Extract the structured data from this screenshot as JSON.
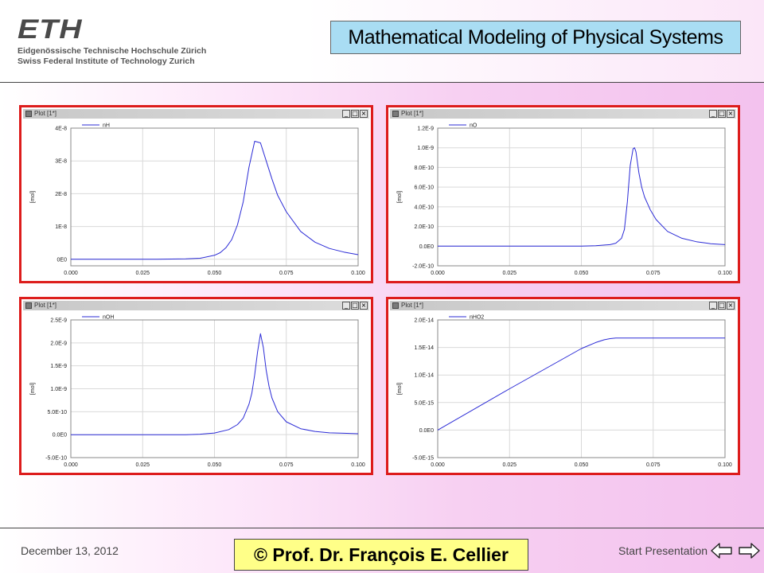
{
  "header": {
    "logo": {
      "wordmark": "ETH",
      "line1": "Eidgenössische Technische Hochschule Zürich",
      "line2": "Swiss Federal Institute of Technology Zurich"
    },
    "title": "Mathematical Modeling of Physical Systems"
  },
  "plots": [
    {
      "window_title": "Plot [1*]",
      "legend": "nH",
      "ylabel": "[mol]"
    },
    {
      "window_title": "Plot [1*]",
      "legend": "nO",
      "ylabel": "[mol]"
    },
    {
      "window_title": "Plot [1*]",
      "legend": "nOH",
      "ylabel": "[mol]"
    },
    {
      "window_title": "Plot [1*]",
      "legend": "nHO2",
      "ylabel": "[mol]"
    }
  ],
  "window_buttons": {
    "minimize": "_",
    "maximize": "□",
    "close": "×"
  },
  "footer": {
    "date": "December 13, 2012",
    "link": "Start Presentation",
    "copyright": "© Prof. Dr. François E. Cellier"
  },
  "chart_data": [
    {
      "type": "line",
      "title": "",
      "xlabel": "",
      "ylabel": "[mol]",
      "xlim": [
        0,
        0.1
      ],
      "ylim": [
        -2e-09,
        4e-08
      ],
      "xticks": [
        0,
        0.025,
        0.05,
        0.075,
        0.1
      ],
      "xtick_labels": [
        "0.000",
        "0.025",
        "0.050",
        "0.075",
        "0.100"
      ],
      "yticks": [
        0,
        1e-08,
        2e-08,
        3e-08,
        4e-08
      ],
      "ytick_labels": [
        "0E0",
        "1E-8",
        "2E-8",
        "3E-8",
        "4E-8"
      ],
      "grid": true,
      "legend_position": "top-left",
      "color": "#2b2bd6",
      "series": [
        {
          "name": "nH",
          "x": [
            0,
            0.01,
            0.02,
            0.03,
            0.04,
            0.045,
            0.05,
            0.052,
            0.054,
            0.056,
            0.058,
            0.06,
            0.062,
            0.064,
            0.066,
            0.068,
            0.07,
            0.072,
            0.075,
            0.08,
            0.085,
            0.09,
            0.095,
            0.1
          ],
          "y": [
            0,
            0,
            0,
            0,
            1e-10,
            3e-10,
            1.2e-09,
            2e-09,
            3.5e-09,
            6e-09,
            1.05e-08,
            1.75e-08,
            2.8e-08,
            3.6e-08,
            3.55e-08,
            3e-08,
            2.45e-08,
            1.95e-08,
            1.45e-08,
            8.5e-09,
            5.2e-09,
            3.3e-09,
            2.2e-09,
            1.4e-09
          ]
        }
      ]
    },
    {
      "type": "line",
      "title": "",
      "xlabel": "",
      "ylabel": "[mol]",
      "xlim": [
        0,
        0.1
      ],
      "ylim": [
        -2e-10,
        1.2e-09
      ],
      "xticks": [
        0,
        0.025,
        0.05,
        0.075,
        0.1
      ],
      "xtick_labels": [
        "0.000",
        "0.025",
        "0.050",
        "0.075",
        "0.100"
      ],
      "yticks": [
        -2e-10,
        0,
        2e-10,
        4e-10,
        6e-10,
        8e-10,
        1e-09,
        1.2e-09
      ],
      "ytick_labels": [
        "-2.0E-10",
        "0.0E0",
        "2.0E-10",
        "4.0E-10",
        "6.0E-10",
        "8.0E-10",
        "1.0E-9",
        "1.2E-9"
      ],
      "grid": true,
      "legend_position": "top-left",
      "color": "#2b2bd6",
      "series": [
        {
          "name": "nO",
          "x": [
            0,
            0.02,
            0.04,
            0.05,
            0.055,
            0.06,
            0.062,
            0.064,
            0.065,
            0.066,
            0.067,
            0.068,
            0.0685,
            0.069,
            0.07,
            0.071,
            0.072,
            0.074,
            0.076,
            0.08,
            0.085,
            0.09,
            0.095,
            0.1
          ],
          "y": [
            0,
            0,
            0,
            1e-12,
            4e-12,
            1.5e-11,
            3e-11,
            8e-11,
            1.7e-10,
            4.5e-10,
            8.2e-10,
            9.9e-10,
            1e-09,
            9.6e-10,
            7.5e-10,
            6e-10,
            5e-10,
            3.7e-10,
            2.7e-10,
            1.5e-10,
            8e-11,
            4.5e-11,
            2.5e-11,
            1.5e-11
          ]
        }
      ]
    },
    {
      "type": "line",
      "title": "",
      "xlabel": "",
      "ylabel": "[mol]",
      "xlim": [
        0,
        0.1
      ],
      "ylim": [
        -5e-10,
        2.5e-09
      ],
      "xticks": [
        0,
        0.025,
        0.05,
        0.075,
        0.1
      ],
      "xtick_labels": [
        "0.000",
        "0.025",
        "0.050",
        "0.075",
        "0.100"
      ],
      "yticks": [
        -5e-10,
        0,
        5e-10,
        1e-09,
        1.5e-09,
        2e-09,
        2.5e-09
      ],
      "ytick_labels": [
        "-5.0E-10",
        "0.0E0",
        "5.0E-10",
        "1.0E-9",
        "1.5E-9",
        "2.0E-9",
        "2.5E-9"
      ],
      "grid": true,
      "legend_position": "top-left",
      "color": "#2b2bd6",
      "series": [
        {
          "name": "nOH",
          "x": [
            0,
            0.02,
            0.04,
            0.045,
            0.05,
            0.055,
            0.058,
            0.06,
            0.062,
            0.063,
            0.064,
            0.065,
            0.066,
            0.067,
            0.068,
            0.069,
            0.07,
            0.072,
            0.075,
            0.08,
            0.085,
            0.09,
            0.095,
            0.1
          ],
          "y": [
            0,
            0,
            0,
            1e-11,
            3.5e-11,
            1.1e-10,
            2.2e-10,
            3.6e-10,
            6.6e-10,
            9e-10,
            1.3e-09,
            1.8e-09,
            2.2e-09,
            1.9e-09,
            1.4e-09,
            1.05e-09,
            8e-10,
            5e-10,
            2.8e-10,
            1.3e-10,
            7e-11,
            4e-11,
            3e-11,
            2e-11
          ]
        }
      ]
    },
    {
      "type": "line",
      "title": "",
      "xlabel": "",
      "ylabel": "[mol]",
      "xlim": [
        0,
        0.1
      ],
      "ylim": [
        -5e-15,
        2e-14
      ],
      "xticks": [
        0,
        0.025,
        0.05,
        0.075,
        0.1
      ],
      "xtick_labels": [
        "0.000",
        "0.025",
        "0.050",
        "0.075",
        "0.100"
      ],
      "yticks": [
        -5e-15,
        0,
        5e-15,
        1e-14,
        1.5e-14,
        2e-14
      ],
      "ytick_labels": [
        "-5.0E-15",
        "0.0E0",
        "5.0E-15",
        "1.0E-14",
        "1.5E-14",
        "2.0E-14"
      ],
      "grid": true,
      "legend_position": "top-left",
      "color": "#2b2bd6",
      "series": [
        {
          "name": "nHO2",
          "x": [
            0,
            0.025,
            0.05,
            0.055,
            0.058,
            0.06,
            0.062,
            0.065,
            0.075,
            0.1
          ],
          "y": [
            0,
            7.5e-15,
            1.48e-14,
            1.59e-14,
            1.64e-14,
            1.66e-14,
            1.67e-14,
            1.67e-14,
            1.67e-14,
            1.67e-14
          ]
        }
      ]
    }
  ]
}
